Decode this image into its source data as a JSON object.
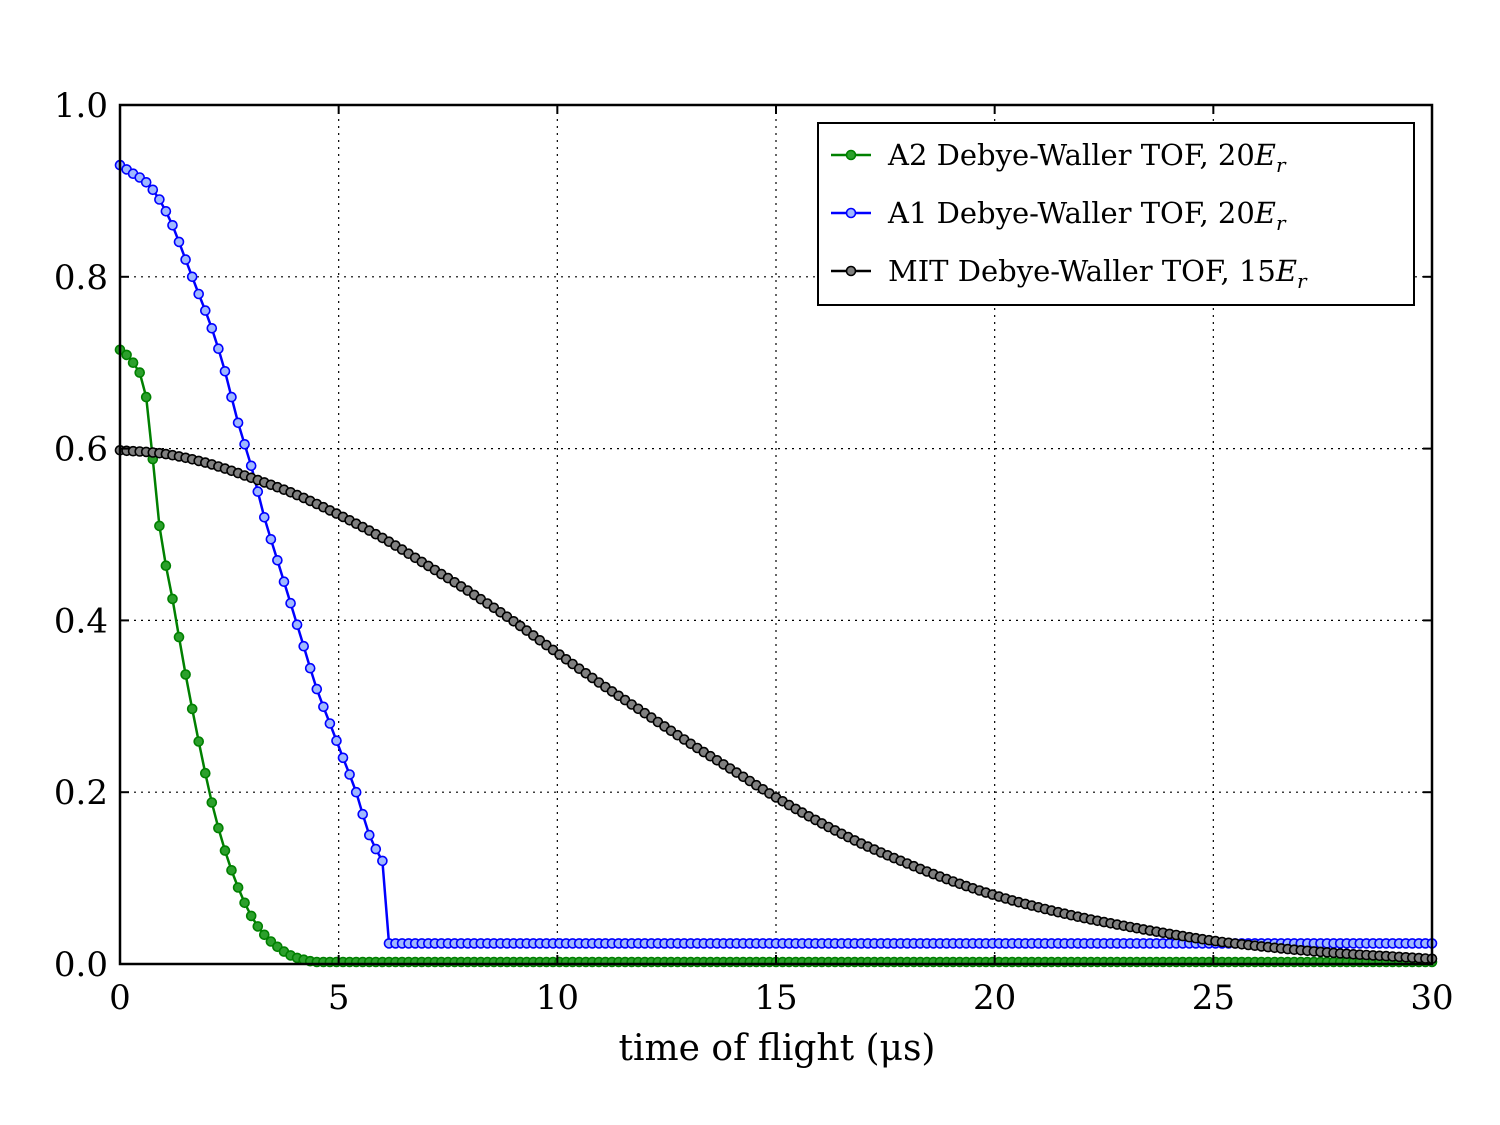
{
  "chart_data": {
    "type": "line",
    "title": "",
    "xlabel": "time of flight (μs)",
    "ylabel": "",
    "xlim": [
      0,
      30
    ],
    "ylim": [
      0,
      1.0
    ],
    "grid": true,
    "legend_position": "top-right",
    "x_ticks": [
      0,
      5,
      10,
      15,
      20,
      25,
      30
    ],
    "x_tick_labels": [
      "0",
      "5",
      "10",
      "15",
      "20",
      "25",
      "30"
    ],
    "y_ticks": [
      0,
      0.2,
      0.4,
      0.6,
      0.8,
      1.0
    ],
    "y_tick_labels": [
      "0.0",
      "0.2",
      "0.4",
      "0.6",
      "0.8",
      "1.0"
    ],
    "series": [
      {
        "name": "A2 Debye-Waller TOF, 20E_r",
        "label_main": "A2 Debye-Waller TOF, 20",
        "label_e": "E",
        "label_sub": "r",
        "line_color": "#008000",
        "marker_color": "#2ca02c",
        "x": [
          0.0,
          0.3,
          0.6,
          0.9,
          1.2,
          1.5,
          1.8,
          2.1,
          2.4,
          2.7,
          3.0,
          3.3,
          3.6,
          3.9,
          4.2,
          4.5,
          4.8
        ],
        "y": [
          0.715,
          0.7,
          0.66,
          0.51,
          0.425,
          0.337,
          0.259,
          0.188,
          0.132,
          0.089,
          0.056,
          0.034,
          0.02,
          0.01,
          0.005,
          0.002,
          0.001
        ]
      },
      {
        "name": "A1 Debye-Waller TOF, 20E_r",
        "label_main": "A1 Debye-Waller TOF, 20",
        "label_e": "E",
        "label_sub": "r",
        "line_color": "#0000ff",
        "marker_color": "#9fb8ff",
        "x": [
          0.0,
          0.3,
          0.6,
          0.9,
          1.2,
          1.5,
          1.8,
          2.1,
          2.4,
          2.7,
          3.0,
          3.3,
          3.6,
          3.9,
          4.2,
          4.5,
          4.8,
          5.1,
          5.4,
          5.7,
          6.0
        ],
        "y": [
          0.93,
          0.92,
          0.91,
          0.89,
          0.86,
          0.82,
          0.78,
          0.74,
          0.69,
          0.63,
          0.58,
          0.52,
          0.47,
          0.42,
          0.37,
          0.32,
          0.28,
          0.24,
          0.2,
          0.15,
          0.12
        ]
      },
      {
        "name": "MIT Debye-Waller TOF, 15E_r",
        "label_main": "MIT Debye-Waller TOF, 15",
        "label_e": "E",
        "label_sub": "r",
        "line_color": "#000000",
        "marker_color": "#808080",
        "x": [
          0,
          1,
          2,
          3,
          4,
          5,
          6,
          7,
          8,
          9,
          10,
          11,
          12,
          13,
          14,
          15,
          16,
          17,
          18,
          19,
          20,
          21,
          22,
          23,
          24,
          25,
          26,
          27,
          28,
          29,
          30
        ],
        "y": [
          0.598,
          0.594,
          0.583,
          0.566,
          0.547,
          0.523,
          0.496,
          0.465,
          0.433,
          0.399,
          0.362,
          0.326,
          0.292,
          0.258,
          0.226,
          0.194,
          0.165,
          0.139,
          0.117,
          0.097,
          0.08,
          0.066,
          0.054,
          0.044,
          0.035,
          0.027,
          0.021,
          0.016,
          0.012,
          0.009,
          0.006
        ]
      }
    ]
  }
}
